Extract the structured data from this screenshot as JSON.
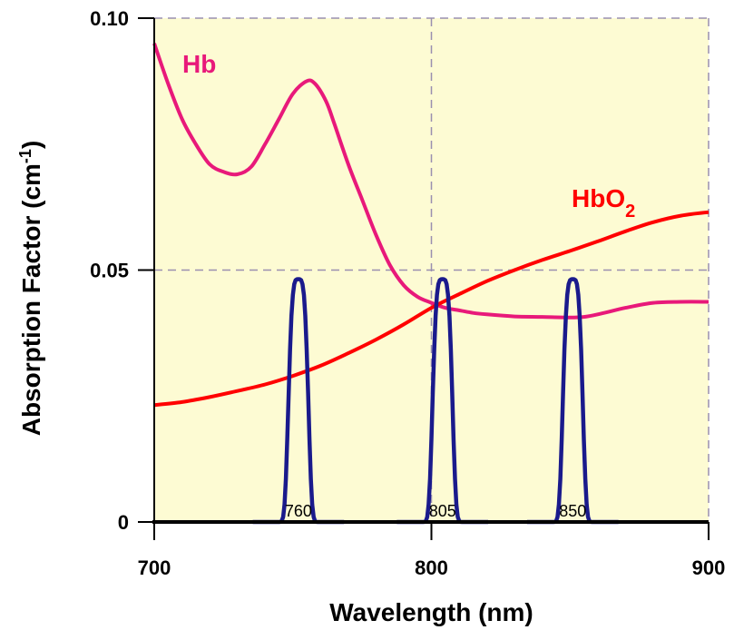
{
  "chart_data": {
    "type": "line",
    "xlabel": "Wavelength (nm)",
    "ylabel": {
      "main": "Absorption Factor (cm",
      "sup": "-1",
      "close": ")"
    },
    "xlim": [
      700,
      900
    ],
    "ylim": [
      0,
      0.1
    ],
    "x_ticks": [
      {
        "value": 700,
        "label": "700"
      },
      {
        "value": 800,
        "label": "800"
      },
      {
        "value": 900,
        "label": "900"
      }
    ],
    "y_ticks": [
      {
        "value": 0,
        "label": "0"
      },
      {
        "value": 0.05,
        "label": "0.05"
      },
      {
        "value": 0.1,
        "label": "0.10"
      }
    ],
    "grid": {
      "x": [
        800,
        900
      ],
      "y": [
        0.05,
        0.1
      ],
      "style": "dashed"
    },
    "background": "#fdfbd3",
    "series": [
      {
        "name": "Hb",
        "color": "#e8197a",
        "label": {
          "text": "Hb",
          "sub": ""
        },
        "x": [
          700,
          705,
          710,
          715,
          720,
          725,
          730,
          735,
          740,
          745,
          750,
          755,
          758,
          762,
          765,
          770,
          775,
          780,
          785,
          790,
          795,
          800,
          805,
          810,
          815,
          820,
          830,
          840,
          850,
          855,
          860,
          870,
          880,
          890,
          900
        ],
        "y": [
          0.095,
          0.087,
          0.08,
          0.075,
          0.071,
          0.0695,
          0.069,
          0.0705,
          0.075,
          0.08,
          0.085,
          0.0875,
          0.087,
          0.0835,
          0.079,
          0.071,
          0.064,
          0.057,
          0.051,
          0.047,
          0.0447,
          0.0435,
          0.0425,
          0.042,
          0.0415,
          0.0412,
          0.0408,
          0.0407,
          0.0406,
          0.0407,
          0.0412,
          0.0425,
          0.0435,
          0.0437,
          0.0437
        ]
      },
      {
        "name": "HbO2",
        "color": "#ff0000",
        "label": {
          "text": "HbO",
          "sub": "2"
        },
        "x": [
          700,
          710,
          720,
          730,
          740,
          750,
          760,
          770,
          780,
          790,
          800,
          810,
          820,
          830,
          840,
          850,
          860,
          870,
          880,
          890,
          900
        ],
        "y": [
          0.0232,
          0.0238,
          0.0248,
          0.026,
          0.0273,
          0.029,
          0.031,
          0.0335,
          0.0362,
          0.0392,
          0.0425,
          0.0452,
          0.0478,
          0.05,
          0.052,
          0.0538,
          0.0557,
          0.0577,
          0.0595,
          0.0608,
          0.0615
        ]
      }
    ],
    "peaks": {
      "color": "#1a1a8c",
      "height": 0.0482,
      "width_sigma": 3.3,
      "items": [
        {
          "center": 752,
          "label": "760"
        },
        {
          "center": 804,
          "label": "805"
        },
        {
          "center": 851,
          "label": "850"
        }
      ]
    }
  }
}
